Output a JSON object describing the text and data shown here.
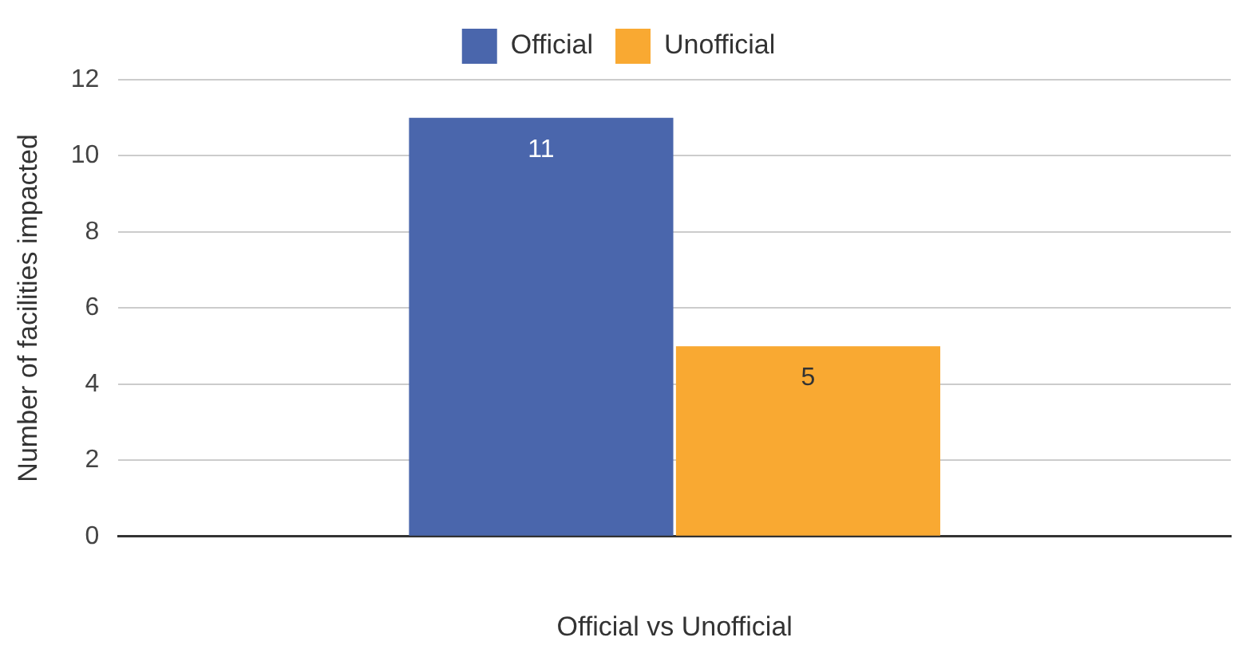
{
  "chart_data": {
    "type": "bar",
    "xlabel": "Official vs Unofficial",
    "ylabel": "Number of facilities impacted",
    "categories": [
      null
    ],
    "series": [
      {
        "name": "Official",
        "color": "#4a66ac",
        "values": [
          11
        ]
      },
      {
        "name": "Unofficial",
        "color": "#f9a932",
        "values": [
          5
        ]
      }
    ],
    "ylim": [
      0,
      12
    ],
    "yticks": [
      0,
      2,
      4,
      6,
      8,
      10,
      12
    ],
    "grid": "y",
    "legend": "top",
    "data_labels": true
  }
}
